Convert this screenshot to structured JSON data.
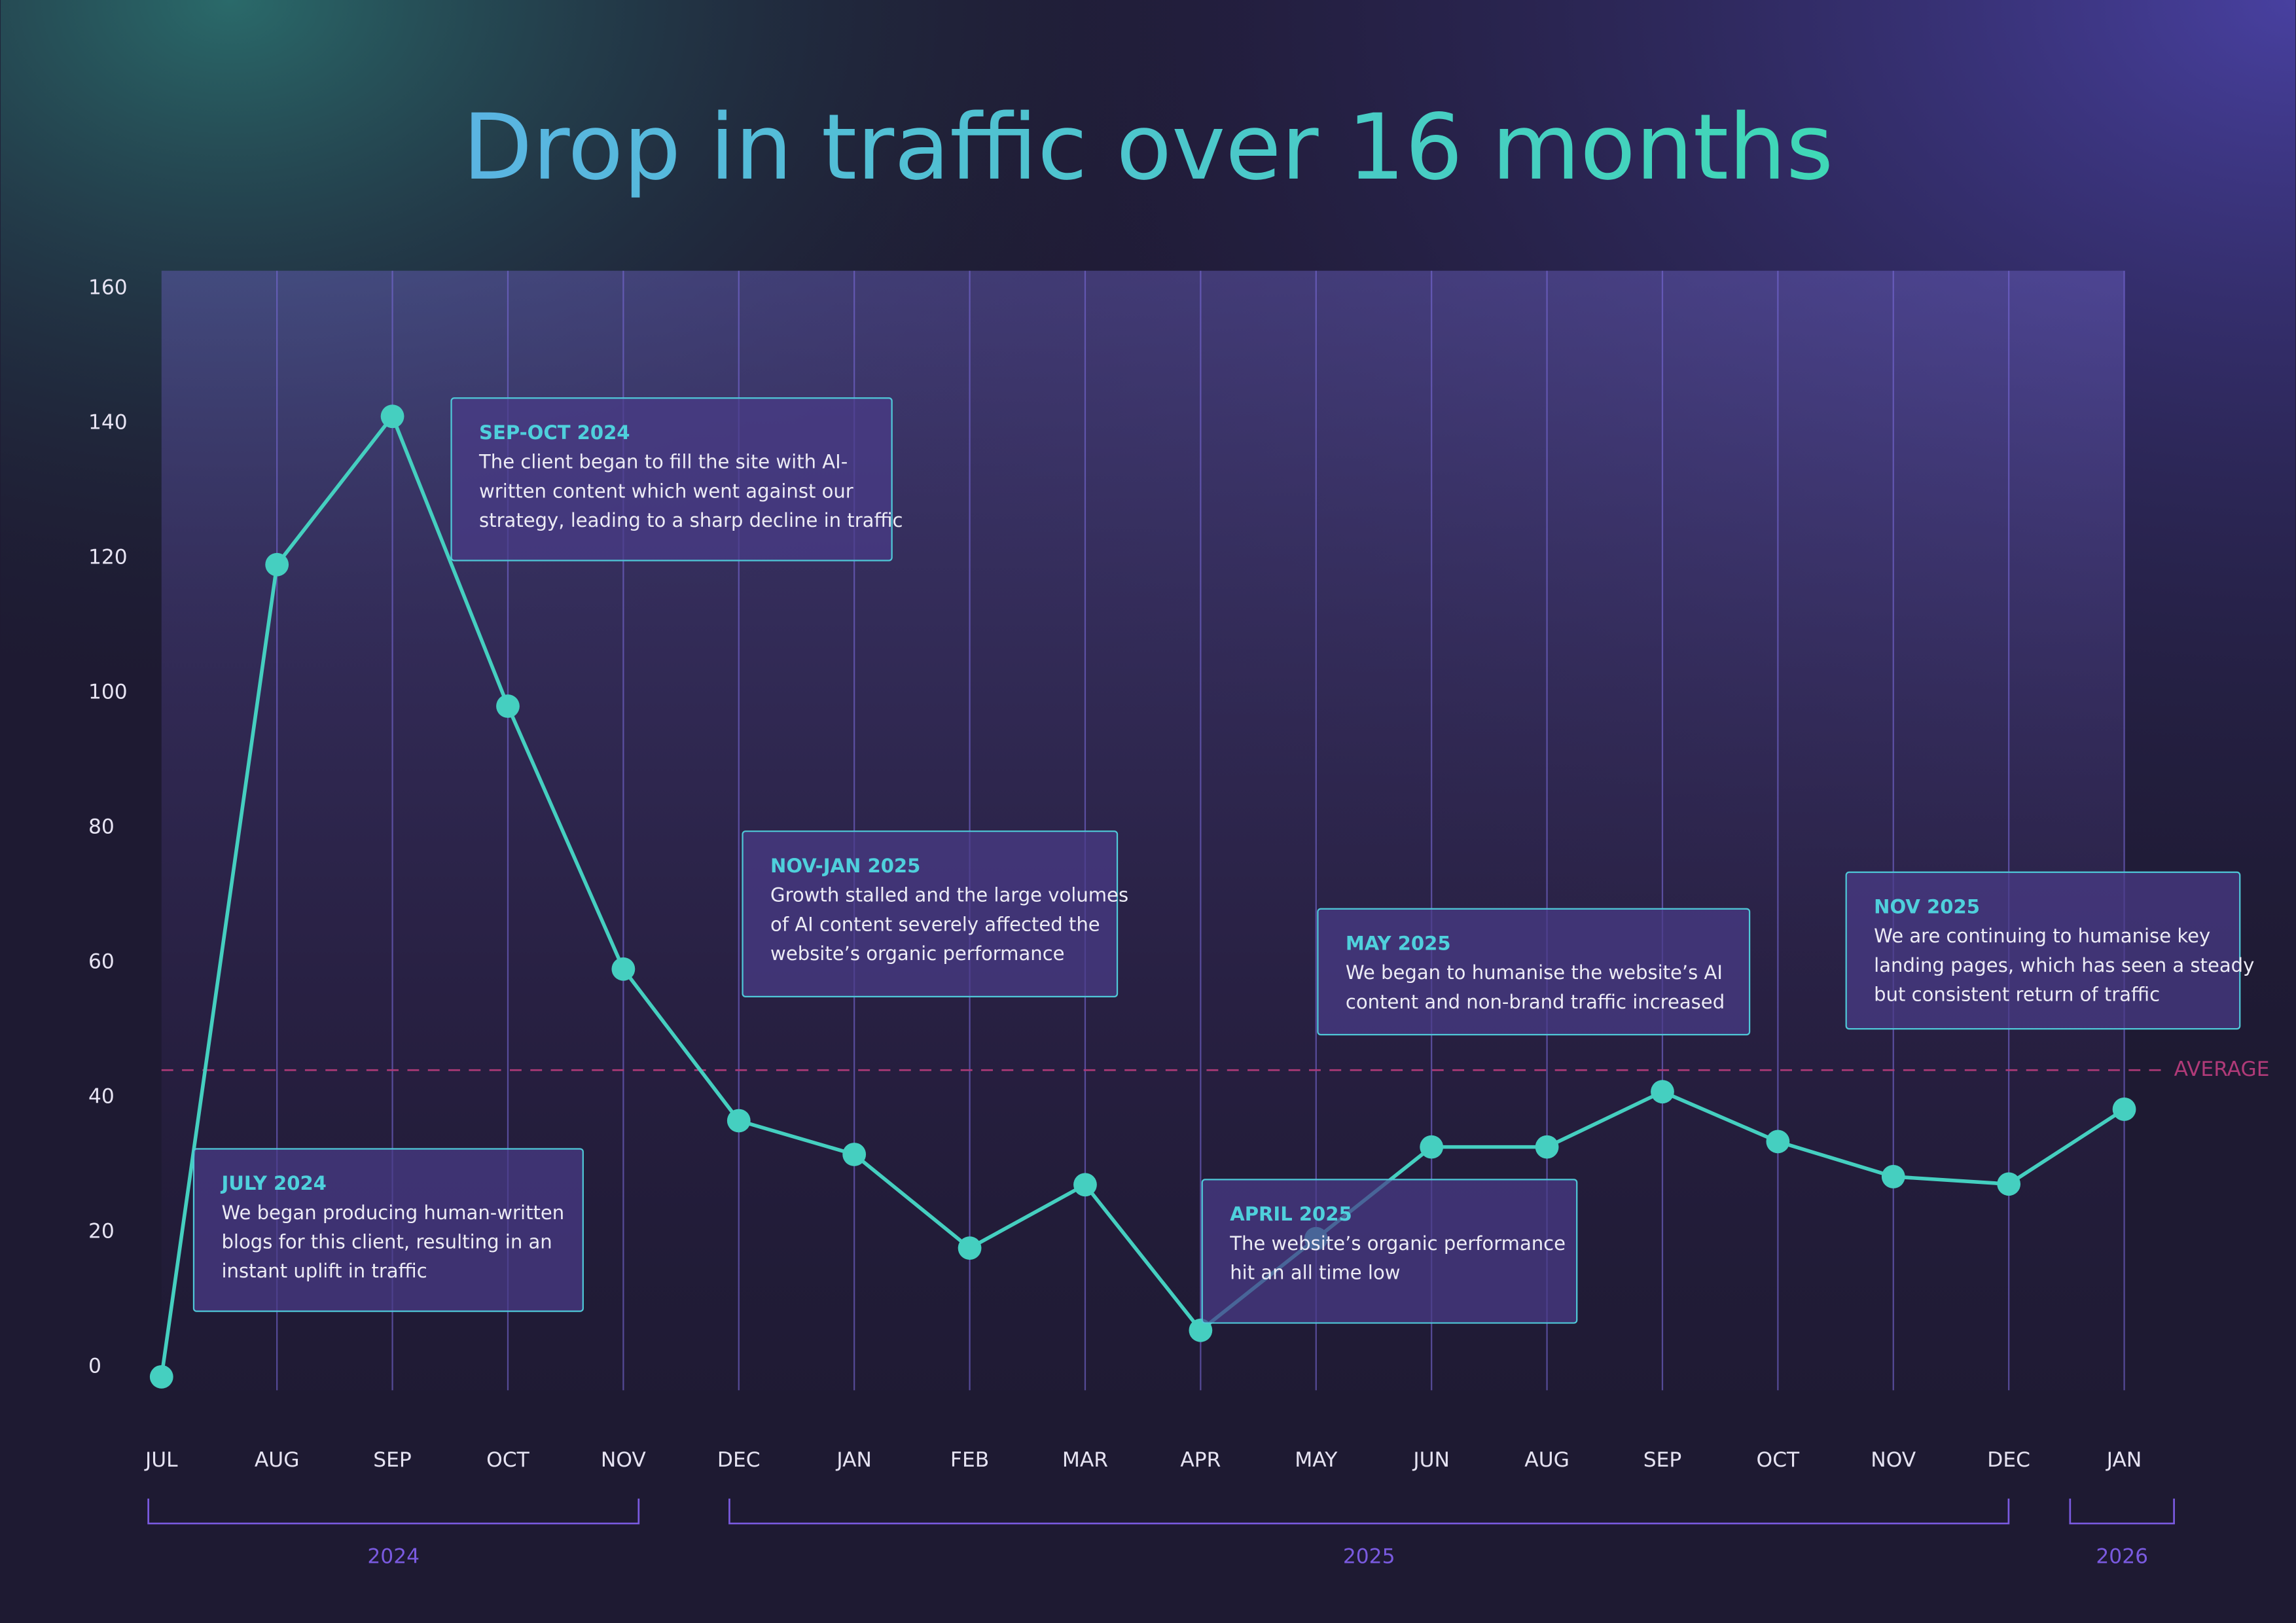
{
  "chart_data": {
    "type": "line",
    "title": "Drop in traffic over 16 months",
    "categories": [
      "JUL",
      "AUG",
      "SEP",
      "OCT",
      "NOV",
      "DEC",
      "JAN",
      "FEB",
      "MAR",
      "APR",
      "MAY",
      "JUN",
      "AUG",
      "SEP",
      "OCT",
      "NOV",
      "DEC",
      "JAN"
    ],
    "values": [
      -1.5,
      119,
      141,
      98,
      59,
      36.5,
      31.5,
      17.6,
      27,
      5.4,
      19,
      32.6,
      32.6,
      40.8,
      33.4,
      28.2,
      27.1,
      38.2
    ],
    "color": "#45cfc0",
    "ylim": [
      -3.5,
      162.6
    ],
    "yticks": [
      0,
      20,
      40,
      60,
      80,
      100,
      120,
      140,
      160
    ],
    "grid": true,
    "average": {
      "label": "AVERAGE",
      "value": 44,
      "color": "#b03a78"
    },
    "years": [
      "2024",
      "2025",
      "2026"
    ],
    "annotations": [
      {
        "title": "JULY 2024",
        "lines": [
          "We began producing human-written",
          "blogs for this client, resulting in an",
          "instant uplift in traffic"
        ]
      },
      {
        "title": "SEP-OCT 2024",
        "lines": [
          "The client began to fill the site with AI-",
          "written content which went against our",
          "strategy, leading to a sharp decline in traffic"
        ]
      },
      {
        "title": "NOV-JAN 2025",
        "lines": [
          "Growth stalled and the large volumes",
          "of AI content severely affected the",
          "website’s organic performance"
        ]
      },
      {
        "title": "APRIL 2025",
        "lines": [
          "The website’s organic performance",
          "hit an all time low"
        ]
      },
      {
        "title": "MAY 2025",
        "lines": [
          "We began to humanise the website’s AI",
          "content and non-brand traffic increased"
        ]
      },
      {
        "title": "NOV 2025",
        "lines": [
          "We are continuing to  humanise key",
          "landing pages, which has seen a steady",
          "but consistent return of traffic"
        ]
      }
    ]
  }
}
